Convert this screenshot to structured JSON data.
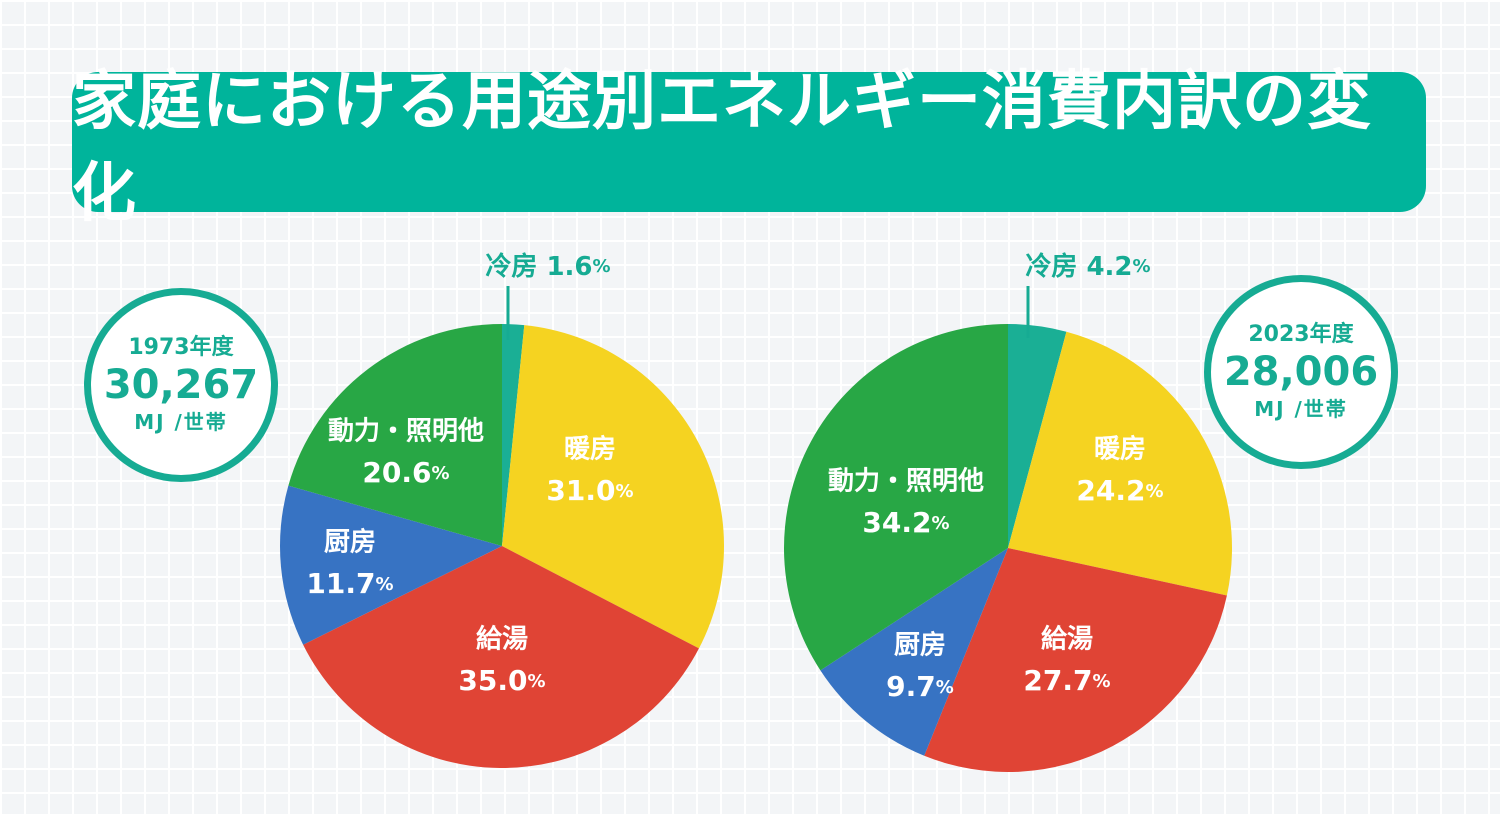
{
  "title": "家庭における用途別エネルギー消費内訳の変化",
  "colors": {
    "banner": "#00b49b",
    "冷房": "#1aaf95",
    "暖房": "#f5d321",
    "給湯": "#e04435",
    "厨房": "#3773c3",
    "動力・照明他": "#28a745",
    "callout": "#16ab93"
  },
  "charts_meta": [
    {
      "year": "1973年度",
      "total": "30,267",
      "unit": "MJ /世帯"
    },
    {
      "year": "2023年度",
      "total": "28,006",
      "unit": "MJ /世帯"
    }
  ],
  "chart_data": [
    {
      "type": "pie",
      "year": "1973年度",
      "slices": [
        {
          "label": "冷房",
          "value": 1.6,
          "display": "1.6"
        },
        {
          "label": "暖房",
          "value": 31.0,
          "display": "31.0"
        },
        {
          "label": "給湯",
          "value": 35.0,
          "display": "35.0"
        },
        {
          "label": "厨房",
          "value": 11.7,
          "display": "11.7"
        },
        {
          "label": "動力・照明他",
          "value": 20.6,
          "display": "20.6"
        }
      ]
    },
    {
      "type": "pie",
      "year": "2023年度",
      "slices": [
        {
          "label": "冷房",
          "value": 4.2,
          "display": "4.2"
        },
        {
          "label": "暖房",
          "value": 24.2,
          "display": "24.2"
        },
        {
          "label": "給湯",
          "value": 27.7,
          "display": "27.7"
        },
        {
          "label": "厨房",
          "value": 9.7,
          "display": "9.7"
        },
        {
          "label": "動力・照明他",
          "value": 34.2,
          "display": "34.2"
        }
      ]
    }
  ]
}
